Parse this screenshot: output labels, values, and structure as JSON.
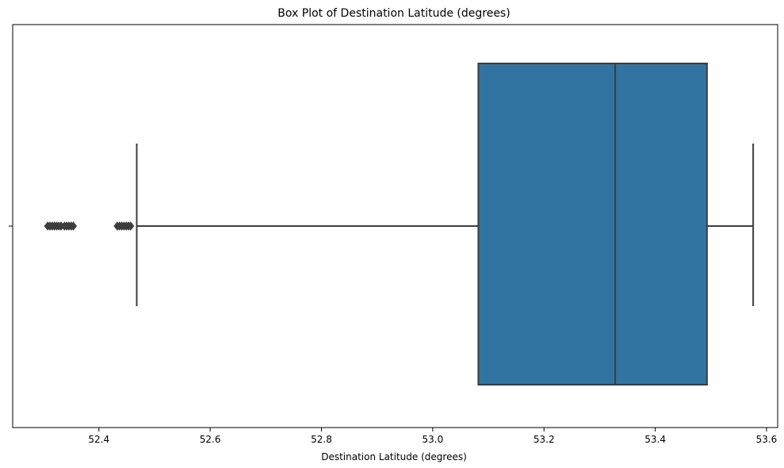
{
  "chart_data": {
    "type": "box",
    "title": "Box Plot of Destination Latitude (degrees)",
    "xlabel": "Destination Latitude (degrees)",
    "ylabel": "",
    "xlim": [
      52.245,
      53.62
    ],
    "x_ticks": [
      "52.4",
      "52.6",
      "52.8",
      "53.0",
      "53.2",
      "53.4",
      "53.6"
    ],
    "orientation": "horizontal",
    "grid": false,
    "box_color": "#3274a1",
    "line_color": "#3d3d3d",
    "boxes": [
      {
        "whisker_low": 52.468,
        "q1": 53.082,
        "median": 53.328,
        "q3": 53.493,
        "whisker_high": 53.576,
        "outliers": [
          52.308,
          52.312,
          52.316,
          52.32,
          52.324,
          52.328,
          52.332,
          52.338,
          52.342,
          52.346,
          52.35,
          52.354,
          52.433,
          52.437,
          52.441,
          52.445,
          52.449,
          52.453,
          52.457
        ]
      }
    ]
  }
}
